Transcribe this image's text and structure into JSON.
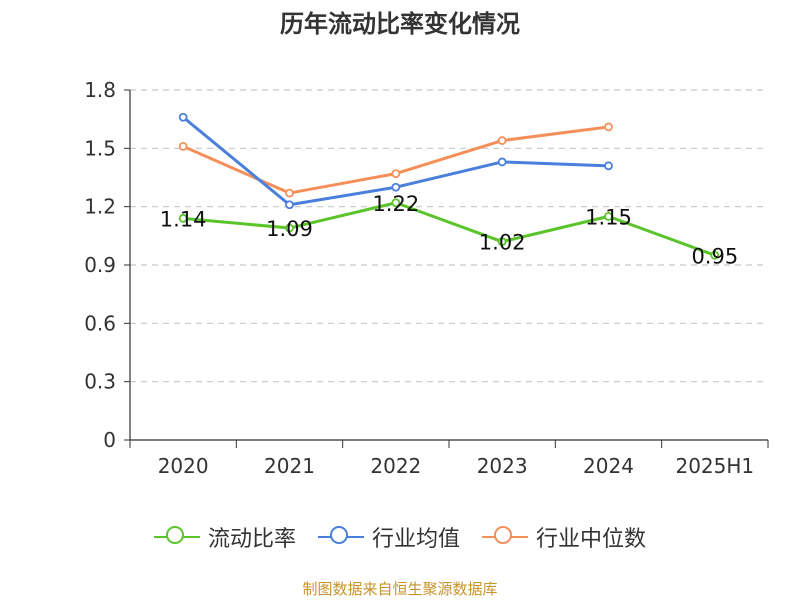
{
  "title": "历年流动比率变化情况",
  "source": "制图数据来自恒生聚源数据库",
  "colors": {
    "axis": "#333333",
    "grid": "#c8c8c8",
    "text": "#333333"
  },
  "chart_data": {
    "type": "line",
    "categories": [
      "2020",
      "2021",
      "2022",
      "2023",
      "2024",
      "2025H1"
    ],
    "ylim": [
      0,
      1.8
    ],
    "yticks": [
      "0",
      "0.3",
      "0.6",
      "0.9",
      "1.2",
      "1.5",
      "1.8"
    ],
    "grid": true,
    "legend_position": "bottom",
    "series": [
      {
        "name": "流动比率",
        "color": "#5ac42a",
        "values": [
          1.14,
          1.09,
          1.22,
          1.02,
          1.15,
          0.95
        ],
        "labels": [
          "1.14",
          "1.09",
          "1.22",
          "1.02",
          "1.15",
          "0.95"
        ]
      },
      {
        "name": "行业均值",
        "color": "#4a7fdb",
        "values": [
          1.66,
          1.21,
          1.3,
          1.43,
          1.41,
          null
        ]
      },
      {
        "name": "行业中位数",
        "color": "#f58f5a",
        "values": [
          1.51,
          1.27,
          1.37,
          1.54,
          1.61,
          null
        ]
      }
    ]
  }
}
